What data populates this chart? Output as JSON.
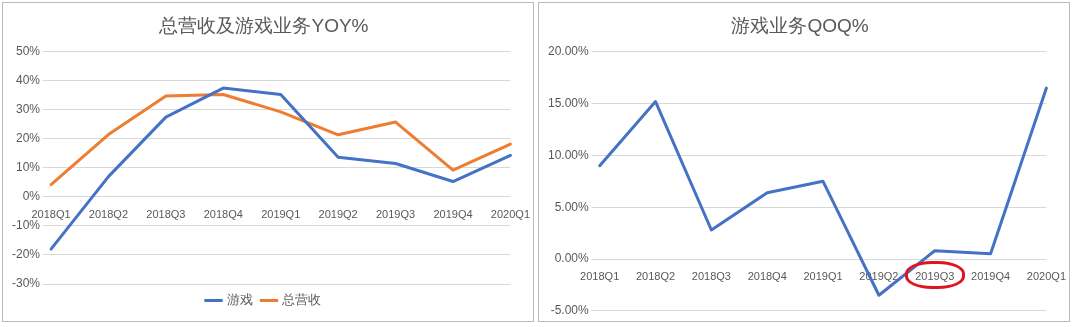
{
  "chart_data": [
    {
      "type": "line",
      "title": "总营收及游戏业务YOY%",
      "categories": [
        "2018Q1",
        "2018Q2",
        "2018Q3",
        "2018Q4",
        "2019Q1",
        "2019Q2",
        "2019Q3",
        "2019Q4",
        "2020Q1"
      ],
      "series": [
        {
          "name": "游戏",
          "color": "#4472c4",
          "values": [
            -18,
            7,
            27.5,
            37.5,
            35.3,
            13.7,
            11.5,
            5.3,
            14.3
          ]
        },
        {
          "name": "总营收",
          "color": "#ed7d31",
          "values": [
            4.2,
            21.5,
            34.8,
            35.3,
            29.3,
            21.4,
            25.8,
            9.2,
            18.2
          ]
        }
      ],
      "ylim": [
        -30,
        50
      ],
      "yticks": [
        {
          "value": -30,
          "label": "-30%"
        },
        {
          "value": -20,
          "label": "-20%"
        },
        {
          "value": -10,
          "label": "-10%"
        },
        {
          "value": 0,
          "label": "0%"
        },
        {
          "value": 10,
          "label": "10%"
        },
        {
          "value": 20,
          "label": "20%"
        },
        {
          "value": 30,
          "label": "30%"
        },
        {
          "value": 40,
          "label": "40%"
        },
        {
          "value": 50,
          "label": "50%"
        }
      ],
      "grid": "y",
      "legend": "bottom",
      "marker": "none",
      "line_style": "solid"
    },
    {
      "type": "line",
      "title": "游戏业务QOQ%",
      "categories": [
        "2018Q1",
        "2018Q2",
        "2018Q3",
        "2018Q4",
        "2019Q1",
        "2019Q2",
        "2019Q3",
        "2019Q4",
        "2020Q1"
      ],
      "series": [
        {
          "color": "#4472c4",
          "values": [
            9,
            15.2,
            2.8,
            6.4,
            7.5,
            -3.5,
            0.8,
            0.5,
            16.5
          ]
        }
      ],
      "ylim": [
        -5,
        20
      ],
      "yticks": [
        {
          "value": -5,
          "label": "-5.00%"
        },
        {
          "value": 0,
          "label": "0.00%"
        },
        {
          "value": 5,
          "label": "5.00%"
        },
        {
          "value": 10,
          "label": "10.00%"
        },
        {
          "value": 15,
          "label": "15.00%"
        },
        {
          "value": 20,
          "label": "20.00%"
        }
      ],
      "grid": "y",
      "legend": false,
      "marker": "none",
      "line_style": "solid"
    }
  ]
}
